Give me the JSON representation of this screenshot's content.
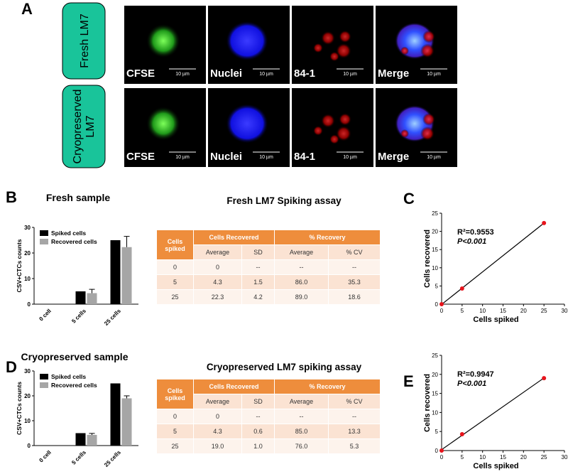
{
  "panel_labels": [
    "A",
    "B",
    "C",
    "D",
    "E"
  ],
  "microscopy": {
    "rows": [
      "Fresh LM7",
      "Cryopreserved LM7"
    ],
    "channels": [
      "CFSE",
      "Nuclei",
      "84-1",
      "Merge"
    ],
    "scale_bar": "10 µm"
  },
  "tables": [
    {
      "title": "Fresh LM7 Spiking assay",
      "group_headers": [
        "Cells spiked",
        "Cells Recovered",
        "% Recovery"
      ],
      "sub_headers": [
        "Average",
        "SD",
        "Average",
        "% CV"
      ],
      "rows": [
        [
          "0",
          "0",
          "--",
          "--",
          "--"
        ],
        [
          "5",
          "4.3",
          "1.5",
          "86.0",
          "35.3"
        ],
        [
          "25",
          "22.3",
          "4.2",
          "89.0",
          "18.6"
        ]
      ]
    },
    {
      "title": "Cryopreserved LM7 spiking assay",
      "group_headers": [
        "Cells spiked",
        "Cells Recovered",
        "% Recovery"
      ],
      "sub_headers": [
        "Average",
        "SD",
        "Average",
        "% CV"
      ],
      "rows": [
        [
          "0",
          "0",
          "--",
          "--",
          "--"
        ],
        [
          "5",
          "4.3",
          "0.6",
          "85.0",
          "13.3"
        ],
        [
          "25",
          "19.0",
          "1.0",
          "76.0",
          "5.3"
        ]
      ]
    }
  ],
  "chart_data": [
    {
      "type": "bar",
      "title": "Fresh sample",
      "ylabel": "CSV+CTCs counts",
      "categories": [
        "0 cell",
        "5 cells",
        "25 cells"
      ],
      "series": [
        {
          "name": "Spiked cells",
          "color": "#000000",
          "values": [
            0,
            5,
            25
          ]
        },
        {
          "name": "Recovered cells",
          "color": "#a6a6a6",
          "values": [
            0,
            4.3,
            22.3
          ],
          "errors": [
            null,
            1.5,
            4.2
          ]
        }
      ],
      "ylim": [
        0,
        30
      ],
      "yticks": [
        0,
        10,
        20,
        30
      ],
      "legend": "upper left"
    },
    {
      "type": "scatter",
      "xlabel": "Cells spiked",
      "ylabel": "Cells recovered",
      "x": [
        0,
        5,
        25
      ],
      "values": [
        0,
        4.3,
        22.3
      ],
      "color": "#e8141c",
      "fit_line": true,
      "annotations": [
        "R²=0.9553",
        "P<0.001"
      ],
      "xlim": [
        0,
        30
      ],
      "xticks": [
        0,
        5,
        10,
        15,
        20,
        25,
        30
      ],
      "ylim": [
        0,
        25
      ],
      "yticks": [
        0,
        5,
        10,
        15,
        20,
        25
      ]
    },
    {
      "type": "bar",
      "title": "Cryopreserved sample",
      "ylabel": "CSV+CTCs counts",
      "categories": [
        "0 cell",
        "5 cells",
        "25 cells"
      ],
      "series": [
        {
          "name": "Spiked cells",
          "color": "#000000",
          "values": [
            0,
            5,
            25
          ]
        },
        {
          "name": "Recovered cells",
          "color": "#a6a6a6",
          "values": [
            0,
            4.3,
            19
          ],
          "errors": [
            null,
            0.6,
            1.0
          ]
        }
      ],
      "ylim": [
        0,
        30
      ],
      "yticks": [
        0,
        10,
        20,
        30
      ],
      "legend": "upper left"
    },
    {
      "type": "scatter",
      "xlabel": "Cells spiked",
      "ylabel": "Cells recovered",
      "x": [
        0,
        5,
        25
      ],
      "values": [
        0,
        4.3,
        19
      ],
      "color": "#e8141c",
      "fit_line": true,
      "annotations": [
        "R²=0.9947",
        "P<0.001"
      ],
      "xlim": [
        0,
        30
      ],
      "xticks": [
        0,
        5,
        10,
        15,
        20,
        25,
        30
      ],
      "ylim": [
        0,
        25
      ],
      "yticks": [
        0,
        5,
        10,
        15,
        20,
        25
      ]
    }
  ]
}
